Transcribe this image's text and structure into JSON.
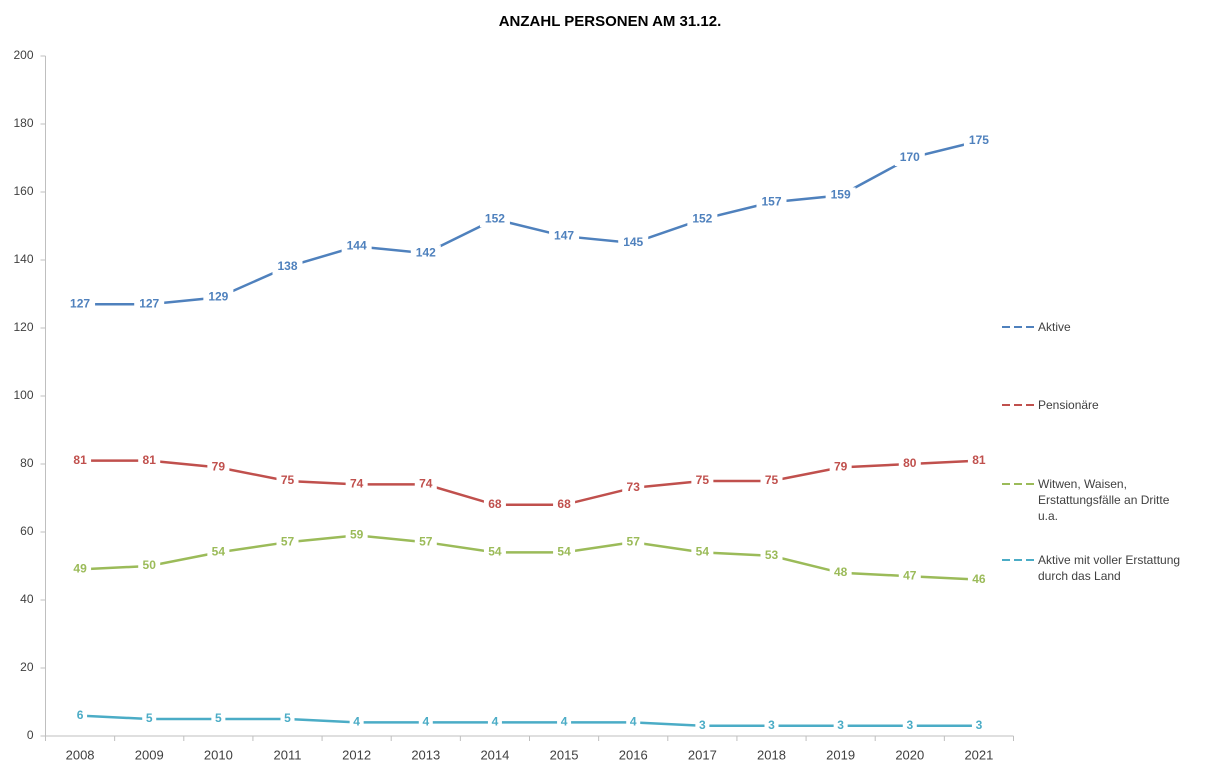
{
  "chart_data": {
    "type": "line",
    "title": "ANZAHL PERSONEN AM 31.12.",
    "categories": [
      "2008",
      "2009",
      "2010",
      "2011",
      "2012",
      "2013",
      "2014",
      "2015",
      "2016",
      "2017",
      "2018",
      "2019",
      "2020",
      "2021"
    ],
    "series": [
      {
        "name": "Aktive",
        "color": "#4f81bd",
        "values": [
          127,
          127,
          129,
          138,
          144,
          142,
          152,
          147,
          145,
          152,
          157,
          159,
          170,
          175
        ]
      },
      {
        "name": "Pensionäre",
        "color": "#c0504d",
        "values": [
          81,
          81,
          79,
          75,
          74,
          74,
          68,
          68,
          73,
          75,
          75,
          79,
          80,
          81
        ]
      },
      {
        "name": "Witwen, Waisen, Erstattungsfälle an Dritte u.a.",
        "color": "#9bbb59",
        "values": [
          49,
          50,
          54,
          57,
          59,
          57,
          54,
          54,
          57,
          54,
          53,
          48,
          47,
          46
        ]
      },
      {
        "name": "Aktive mit voller Erstattung durch das Land",
        "color": "#4bacc6",
        "values": [
          6,
          5,
          5,
          5,
          4,
          4,
          4,
          4,
          4,
          3,
          3,
          3,
          3,
          3
        ]
      }
    ],
    "ylim": [
      0,
      200
    ],
    "yticks": [
      0,
      20,
      40,
      60,
      80,
      100,
      120,
      140,
      160,
      180,
      200
    ],
    "grid": false,
    "legend": "right"
  }
}
